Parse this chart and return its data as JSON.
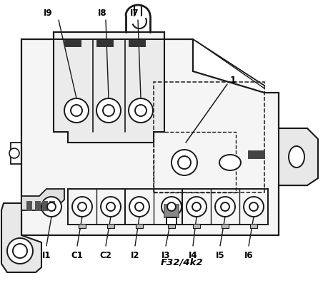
{
  "bg_color": "#ffffff",
  "line_color": "#1a1a1a",
  "label_color": "#000000",
  "bold_label": "F32/4k2",
  "labels_bottom": [
    "I1",
    "C1",
    "C2",
    "I2",
    "I3",
    "I4",
    "I5",
    "I6"
  ],
  "labels_top": [
    "I9",
    "I8",
    "I7"
  ],
  "label_1": "1",
  "figsize": [
    4.6,
    3.97
  ],
  "dpi": 100
}
